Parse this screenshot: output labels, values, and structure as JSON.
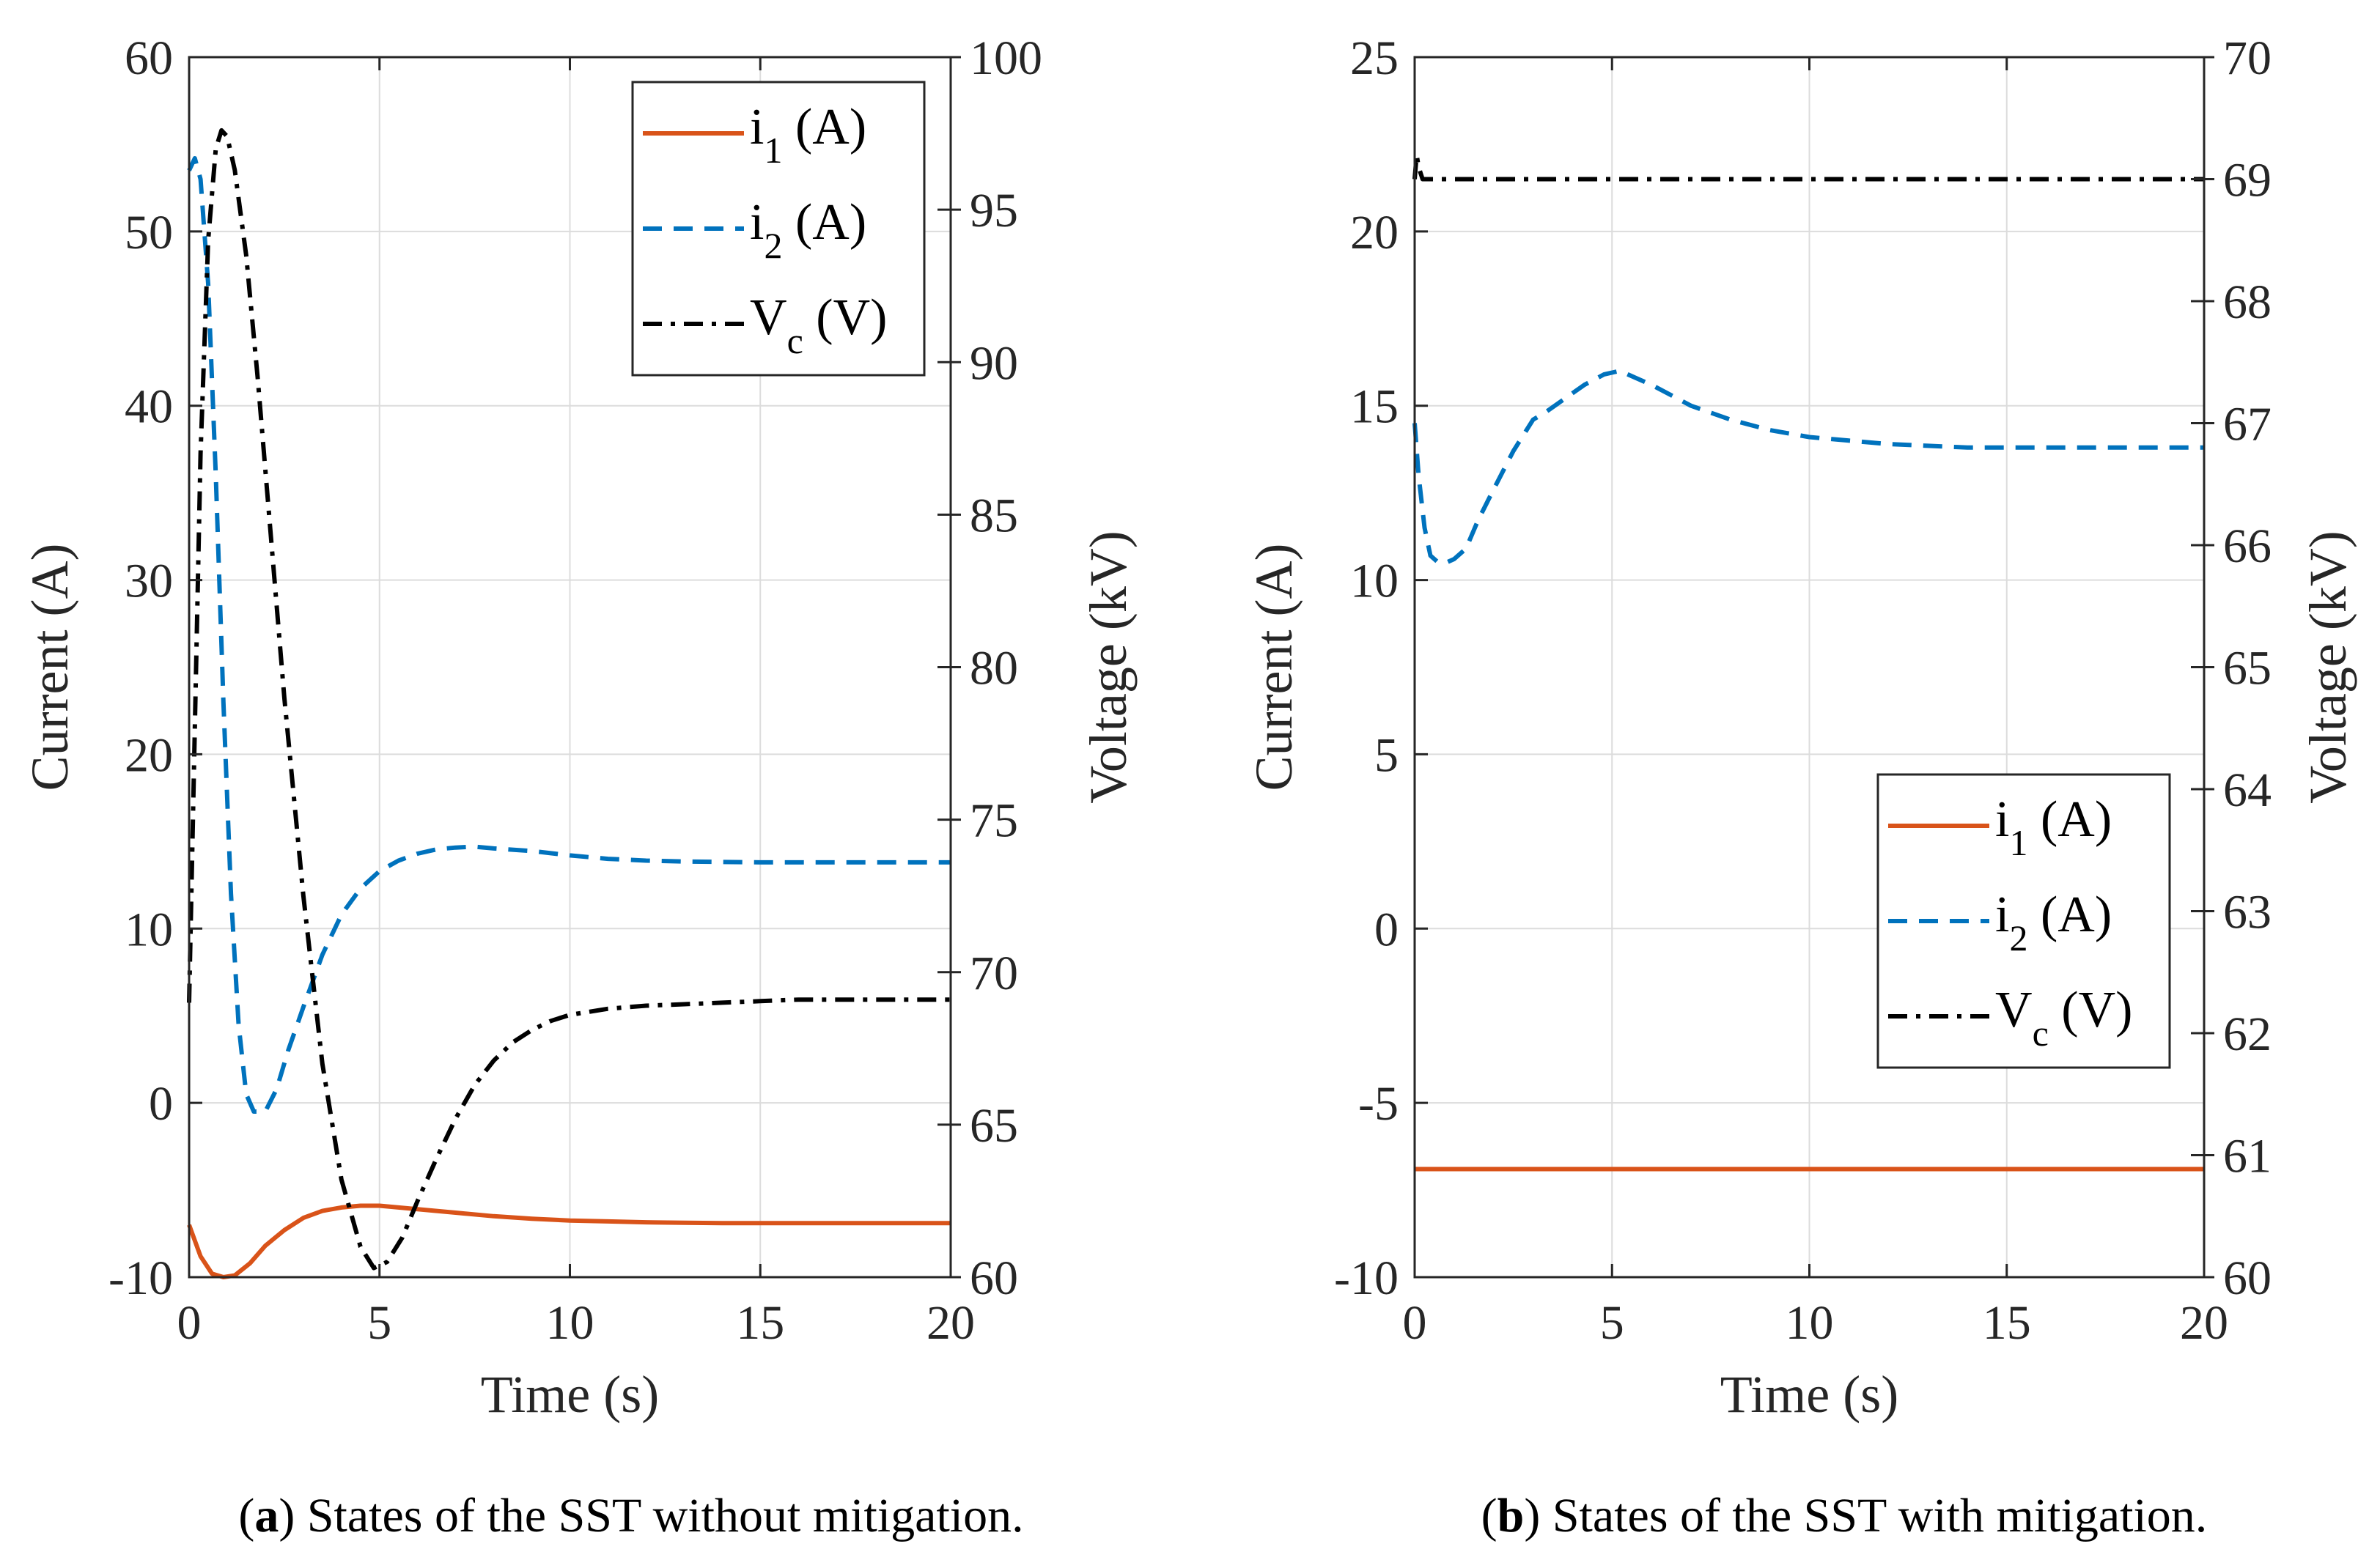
{
  "chart_data": [
    {
      "type": "line",
      "id": "a",
      "caption_tag": "a",
      "caption_text": ") States of the SST without mitigation.",
      "caption_open": "(",
      "xlabel": "Time (s)",
      "ylabel": "Current (A)",
      "y2label": "Voltage (kV)",
      "xlim": [
        0,
        20
      ],
      "ylim": [
        -10,
        60
      ],
      "y2lim": [
        60,
        100
      ],
      "xticks": [
        "0",
        "5",
        "10",
        "15",
        "20"
      ],
      "yticks": [
        "-10",
        "0",
        "10",
        "20",
        "30",
        "40",
        "50",
        "60"
      ],
      "y2ticks": [
        "60",
        "65",
        "70",
        "75",
        "80",
        "85",
        "90",
        "95",
        "100"
      ],
      "legend_position": "top-right",
      "legend": [
        {
          "main": "i",
          "sub": "1",
          "unit": " (A)",
          "color": "#d95319",
          "style": "solid"
        },
        {
          "main": "i",
          "sub": "2",
          "unit": " (A)",
          "color": "#0072bd",
          "style": "dashed"
        },
        {
          "main": "V",
          "sub": "c",
          "unit": " (V)",
          "color": "#000000",
          "style": "dashdot"
        }
      ],
      "series": [
        {
          "name": "i1",
          "axis": "left",
          "color": "#d95319",
          "style": "solid",
          "x": [
            0,
            0.3,
            0.6,
            0.9,
            1.2,
            1.6,
            2.0,
            2.5,
            3.0,
            3.5,
            4.0,
            4.5,
            5.0,
            5.5,
            6.0,
            7.0,
            8.0,
            9.0,
            10.0,
            11.0,
            12.0,
            13.0,
            14.0,
            15.0,
            17.0,
            20.0
          ],
          "y": [
            -7.0,
            -8.8,
            -9.8,
            -10.0,
            -9.9,
            -9.2,
            -8.2,
            -7.3,
            -6.6,
            -6.2,
            -6.0,
            -5.9,
            -5.9,
            -6.0,
            -6.1,
            -6.3,
            -6.5,
            -6.65,
            -6.75,
            -6.8,
            -6.85,
            -6.88,
            -6.9,
            -6.9,
            -6.9,
            -6.9
          ]
        },
        {
          "name": "i2",
          "axis": "left",
          "color": "#0072bd",
          "style": "dashed",
          "x": [
            0,
            0.15,
            0.3,
            0.5,
            0.7,
            0.9,
            1.1,
            1.3,
            1.5,
            1.7,
            2.0,
            2.3,
            2.6,
            3.0,
            3.5,
            4.0,
            4.5,
            5.0,
            5.5,
            6.0,
            6.5,
            7.0,
            7.5,
            8.0,
            9.0,
            10.0,
            11.0,
            12.0,
            13.0,
            15.0,
            17.0,
            20.0
          ],
          "y": [
            53.5,
            54.2,
            53.0,
            47.0,
            36.0,
            23.0,
            12.0,
            4.5,
            0.5,
            -0.5,
            -0.5,
            0.8,
            3.0,
            5.5,
            8.5,
            10.8,
            12.3,
            13.3,
            13.9,
            14.3,
            14.55,
            14.65,
            14.7,
            14.6,
            14.45,
            14.2,
            14.0,
            13.9,
            13.85,
            13.8,
            13.8,
            13.8
          ]
        },
        {
          "name": "Vc",
          "axis": "right",
          "color": "#000000",
          "style": "dashdot",
          "x": [
            0,
            0.15,
            0.3,
            0.5,
            0.7,
            0.85,
            1.0,
            1.2,
            1.5,
            1.8,
            2.1,
            2.5,
            3.0,
            3.5,
            4.0,
            4.5,
            4.85,
            5.2,
            5.6,
            6.0,
            6.5,
            7.0,
            7.5,
            8.0,
            8.5,
            9.0,
            9.5,
            10.0,
            11.0,
            12.0,
            13.0,
            14.0,
            15.0,
            16.0,
            18.0,
            20.0
          ],
          "y": [
            69.0,
            78.0,
            87.0,
            94.0,
            97.0,
            97.6,
            97.4,
            96.3,
            93.5,
            89.5,
            85.0,
            79.0,
            72.5,
            67.0,
            63.2,
            61.0,
            60.3,
            60.5,
            61.3,
            62.5,
            63.9,
            65.2,
            66.3,
            67.1,
            67.7,
            68.1,
            68.4,
            68.6,
            68.8,
            68.9,
            68.95,
            69.0,
            69.05,
            69.1,
            69.1,
            69.1
          ]
        }
      ]
    },
    {
      "type": "line",
      "id": "b",
      "caption_tag": "b",
      "caption_text": ") States of the SST with mitigation.",
      "caption_open": "(",
      "xlabel": "Time (s)",
      "ylabel": "Current (A)",
      "y2label": "Voltage (kV)",
      "xlim": [
        0,
        20
      ],
      "ylim": [
        -10,
        25
      ],
      "y2lim": [
        60,
        70
      ],
      "xticks": [
        "0",
        "5",
        "10",
        "15",
        "20"
      ],
      "yticks": [
        "-10",
        "-5",
        "0",
        "5",
        "10",
        "15",
        "20",
        "25"
      ],
      "y2ticks": [
        "60",
        "61",
        "62",
        "63",
        "64",
        "65",
        "66",
        "67",
        "68",
        "69",
        "70"
      ],
      "legend_position": "bottom-right",
      "legend": [
        {
          "main": "i",
          "sub": "1",
          "unit": " (A)",
          "color": "#d95319",
          "style": "solid"
        },
        {
          "main": "i",
          "sub": "2",
          "unit": " (A)",
          "color": "#0072bd",
          "style": "dashed"
        },
        {
          "main": "V",
          "sub": "c",
          "unit": " (V)",
          "color": "#000000",
          "style": "dashdot"
        }
      ],
      "series": [
        {
          "name": "i1",
          "axis": "left",
          "color": "#d95319",
          "style": "solid",
          "x": [
            0,
            20
          ],
          "y": [
            -6.9,
            -6.9
          ]
        },
        {
          "name": "i2",
          "axis": "left",
          "color": "#0072bd",
          "style": "dashed",
          "x": [
            0,
            0.1,
            0.25,
            0.4,
            0.6,
            0.8,
            1.0,
            1.3,
            1.6,
            2.0,
            2.5,
            3.0,
            3.3,
            3.8,
            4.3,
            4.8,
            5.2,
            5.6,
            6.0,
            6.5,
            7.0,
            8.0,
            9.0,
            10.0,
            11.0,
            12.0,
            13.0,
            14.0,
            15.0,
            17.0,
            20.0
          ],
          "y": [
            14.5,
            13.0,
            11.5,
            10.7,
            10.5,
            10.5,
            10.6,
            10.9,
            11.7,
            12.6,
            13.7,
            14.6,
            14.8,
            15.2,
            15.6,
            15.9,
            16.0,
            15.8,
            15.6,
            15.3,
            15.0,
            14.6,
            14.3,
            14.1,
            14.0,
            13.9,
            13.85,
            13.8,
            13.8,
            13.8,
            13.8
          ]
        },
        {
          "name": "Vc",
          "axis": "right",
          "color": "#000000",
          "style": "dashdot",
          "x": [
            0,
            0.05,
            0.1,
            0.2,
            0.4,
            20
          ],
          "y": [
            69.0,
            69.2,
            69.1,
            69.0,
            69.0,
            69.0
          ]
        }
      ]
    }
  ]
}
